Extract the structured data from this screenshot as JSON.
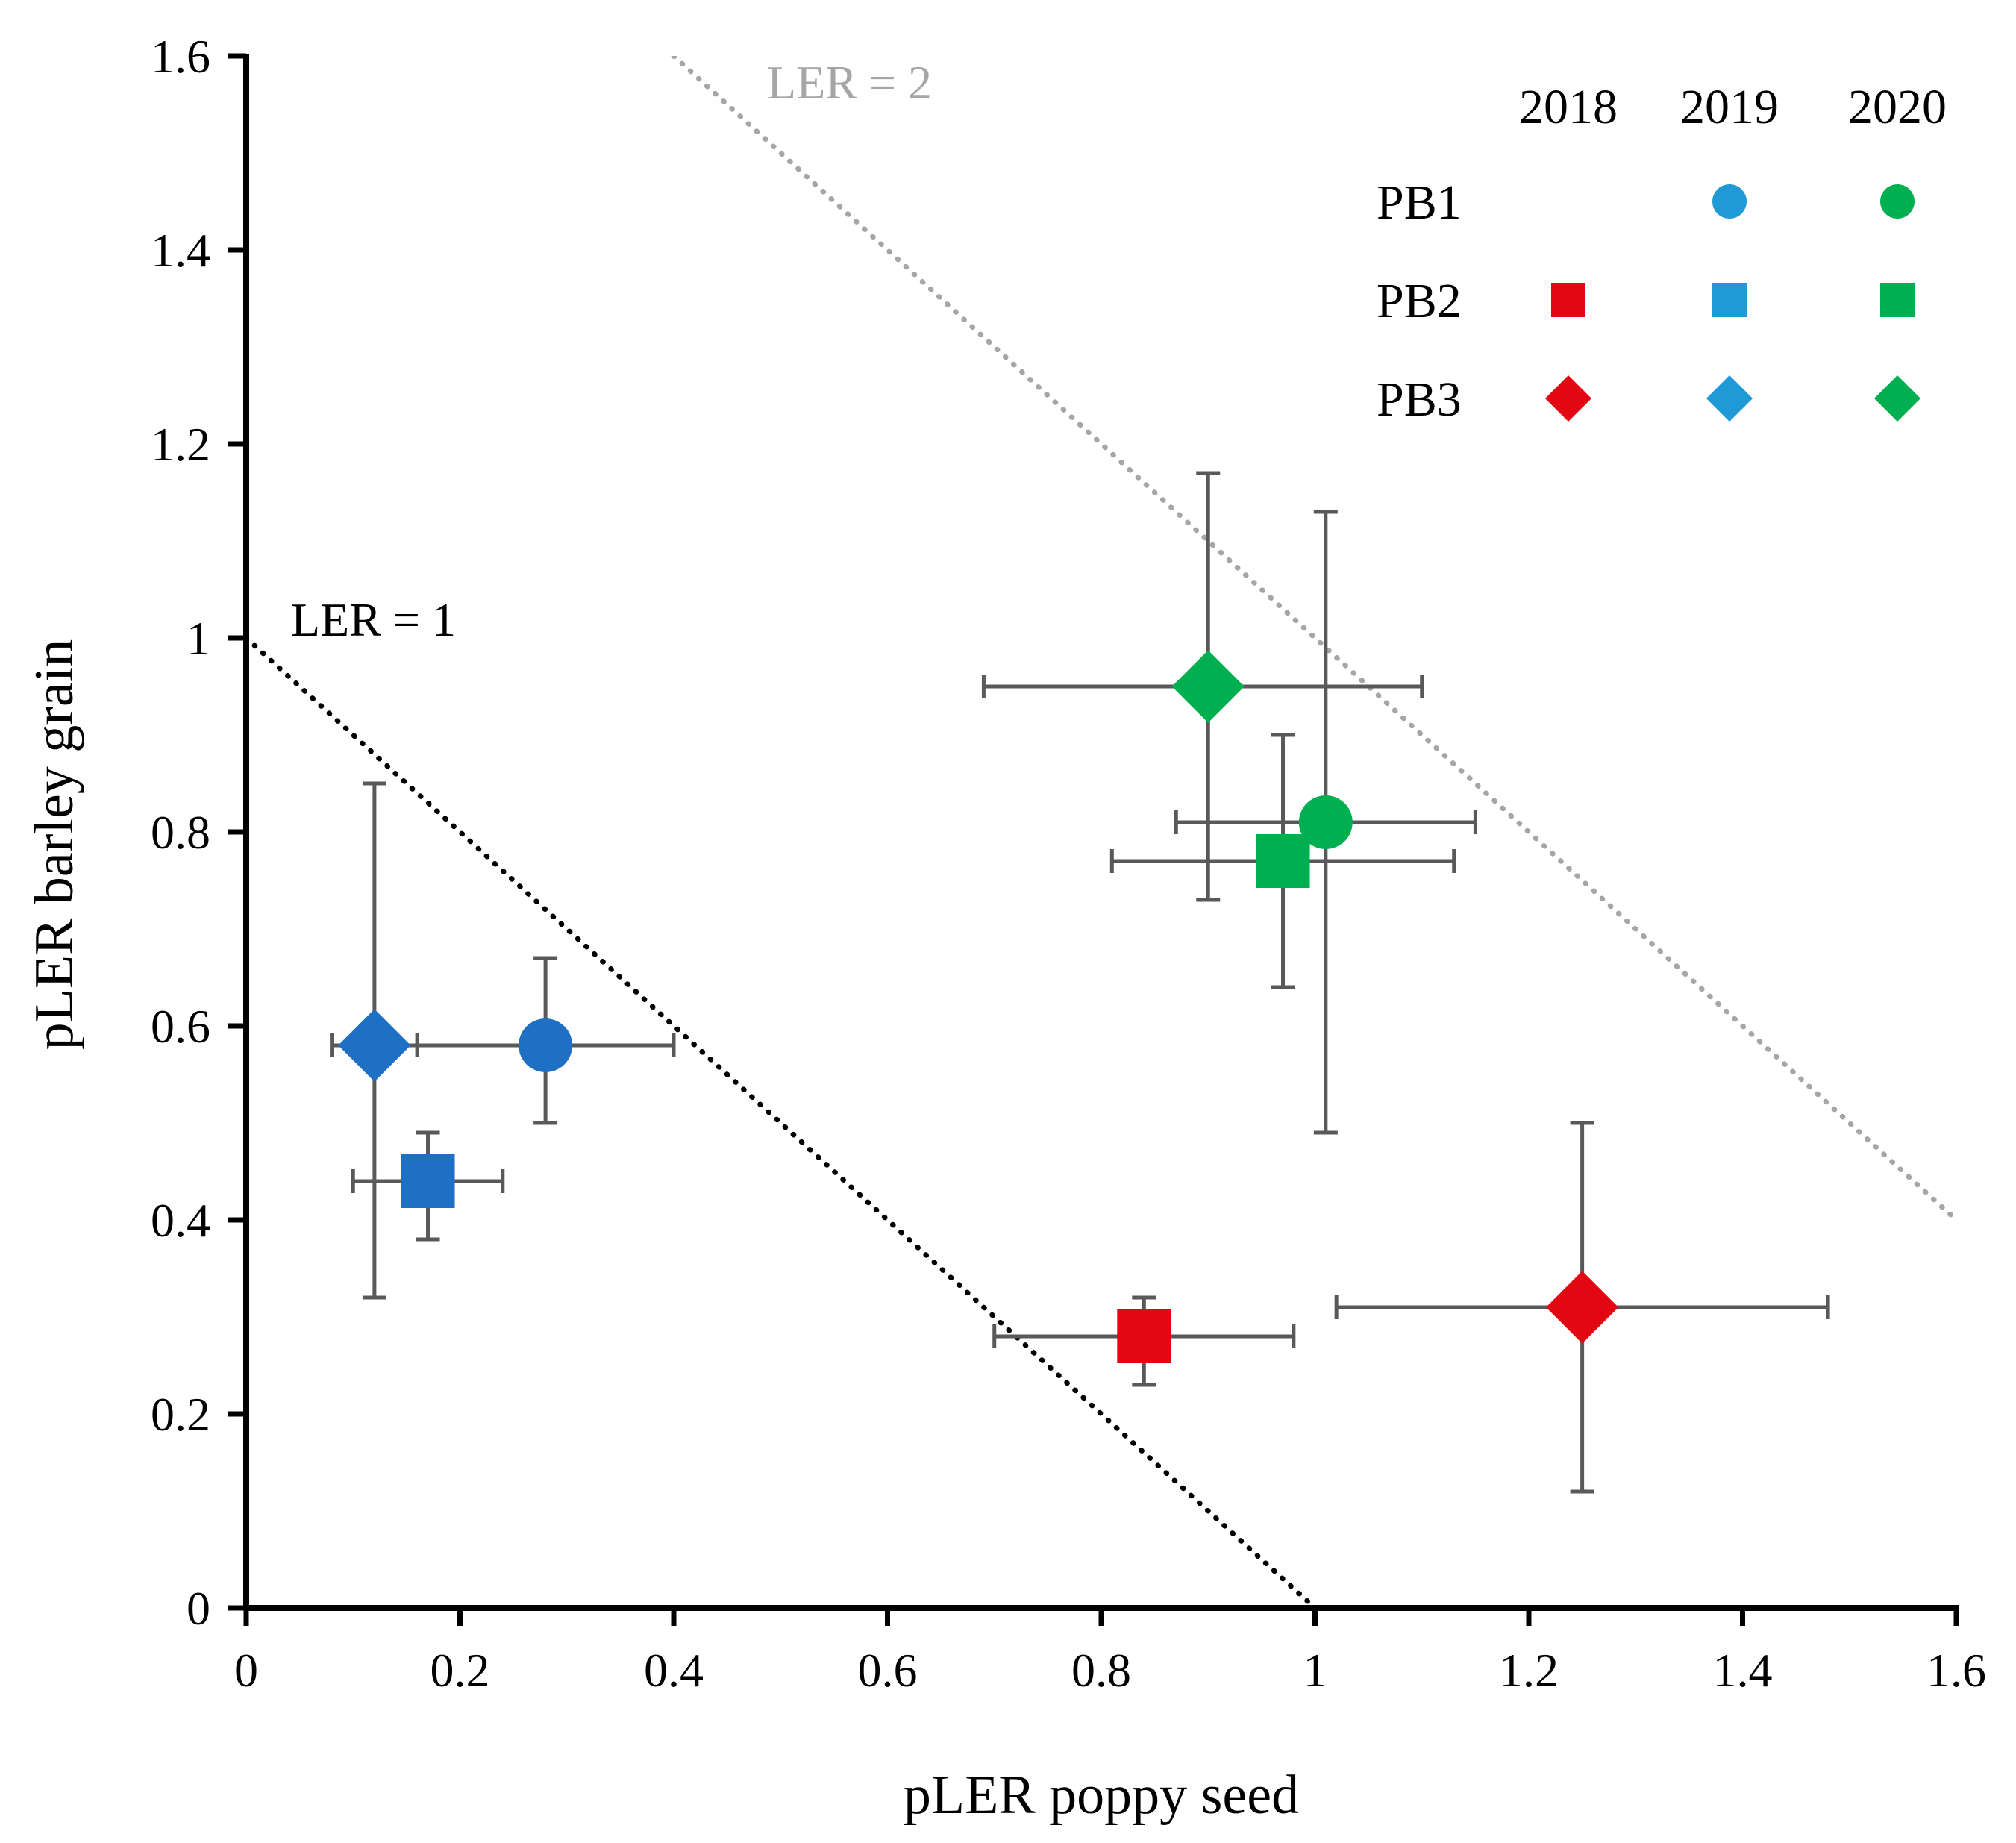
{
  "chart_data": {
    "type": "scatter",
    "xlabel": "pLER poppy seed",
    "ylabel": "pLER barley grain",
    "xlim": [
      0,
      1.6
    ],
    "ylim": [
      0,
      1.6
    ],
    "x_ticks": [
      "0",
      "0.2",
      "0.4",
      "0.6",
      "0.8",
      "1",
      "1.2",
      "1.4",
      "1.6"
    ],
    "y_ticks": [
      "0",
      "0.2",
      "0.4",
      "0.6",
      "0.8",
      "1",
      "1.2",
      "1.4",
      "1.6"
    ],
    "grid": false,
    "legend": {
      "placement": "top-right",
      "years": [
        "2018",
        "2019",
        "2020"
      ],
      "treatments": [
        "PB1",
        "PB2",
        "PB3"
      ]
    },
    "colors": {
      "2018": "#e30613",
      "2019": "#1f9ad6",
      "2020": "#00b050",
      "2019_points": "#1f6fc5"
    },
    "shapes": {
      "PB1": "circle",
      "PB2": "square",
      "PB3": "diamond"
    },
    "reference_lines": [
      {
        "label": "LER = 1",
        "sum": 1,
        "color": "#000000"
      },
      {
        "label": "LER = 2",
        "sum": 2,
        "color": "#a6a6a6"
      }
    ],
    "points": [
      {
        "treatment": "PB1",
        "year": "2019",
        "x": 0.28,
        "y": 0.58,
        "x_err": [
          0.16,
          0.4
        ],
        "y_err": [
          0.5,
          0.67
        ]
      },
      {
        "treatment": "PB2",
        "year": "2019",
        "x": 0.17,
        "y": 0.44,
        "x_err": [
          0.1,
          0.24
        ],
        "y_err": [
          0.38,
          0.49
        ]
      },
      {
        "treatment": "PB3",
        "year": "2019",
        "x": 0.12,
        "y": 0.58,
        "x_err": [
          0.08,
          0.16
        ],
        "y_err": [
          0.32,
          0.85
        ]
      },
      {
        "treatment": "PB2",
        "year": "2018",
        "x": 0.84,
        "y": 0.28,
        "x_err": [
          0.7,
          0.98
        ],
        "y_err": [
          0.23,
          0.32
        ]
      },
      {
        "treatment": "PB3",
        "year": "2018",
        "x": 1.25,
        "y": 0.31,
        "x_err": [
          1.02,
          1.48
        ],
        "y_err": [
          0.12,
          0.5
        ]
      },
      {
        "treatment": "PB1",
        "year": "2020",
        "x": 1.01,
        "y": 0.81,
        "x_err": [
          0.87,
          1.15
        ],
        "y_err": [
          0.49,
          1.13
        ]
      },
      {
        "treatment": "PB2",
        "year": "2020",
        "x": 0.97,
        "y": 0.77,
        "x_err": [
          0.81,
          1.13
        ],
        "y_err": [
          0.64,
          0.9
        ]
      },
      {
        "treatment": "PB3",
        "year": "2020",
        "x": 0.9,
        "y": 0.95,
        "x_err": [
          0.69,
          1.1
        ],
        "y_err": [
          0.73,
          1.17
        ]
      }
    ]
  }
}
